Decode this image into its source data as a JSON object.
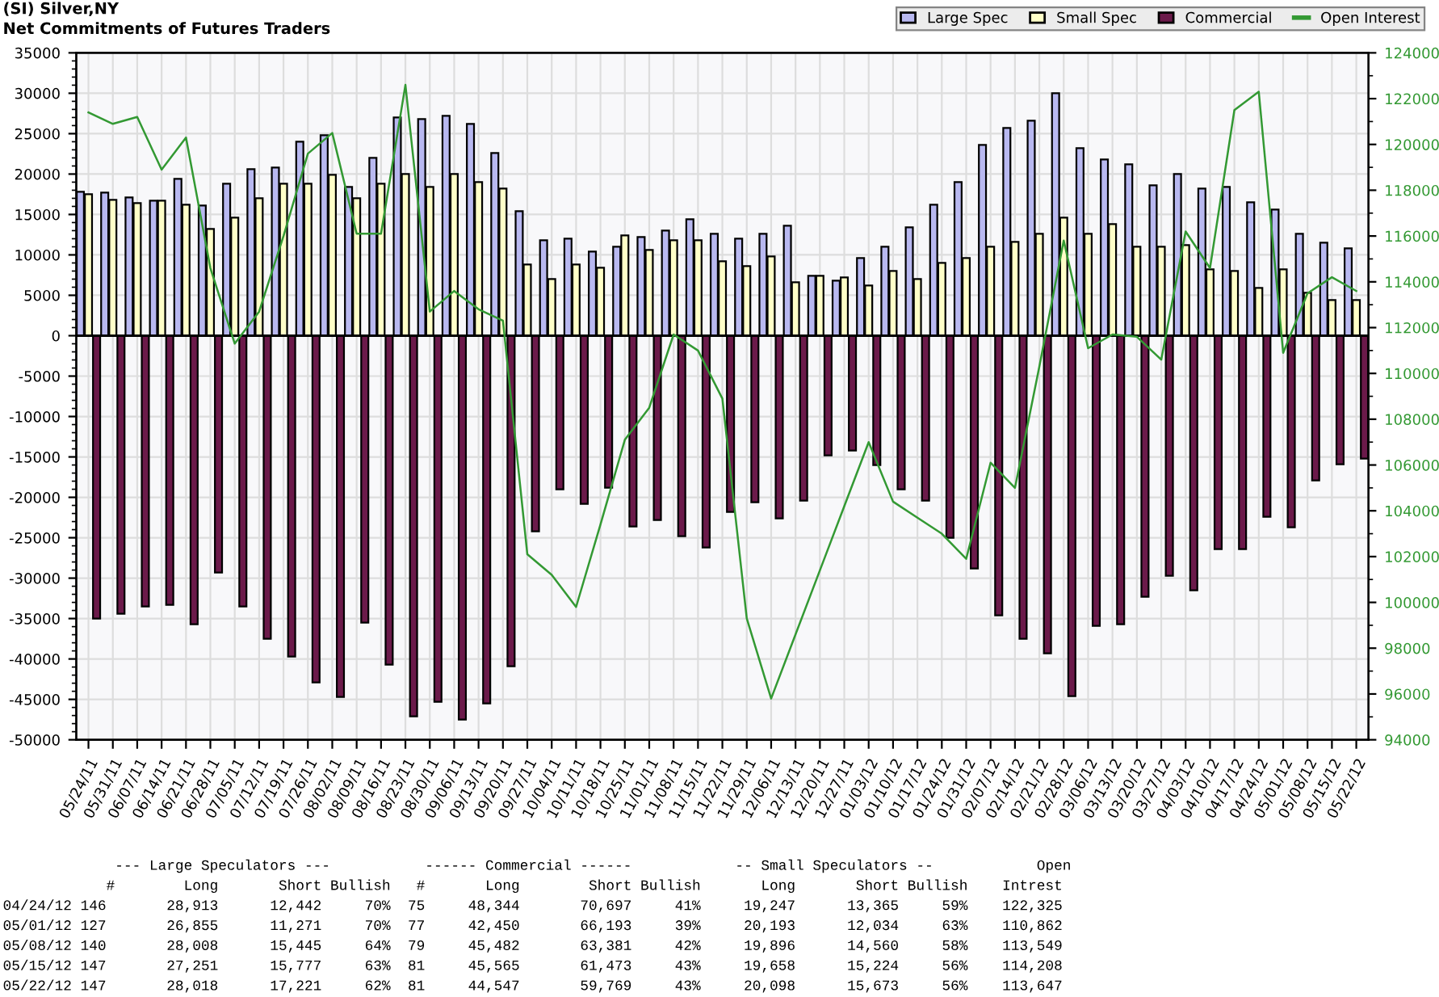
{
  "chart_data": {
    "type": "bar",
    "title": "(SI) Silver,NY",
    "subtitle": "Net Commitments of Futures Traders",
    "categories": [
      "05/24/11",
      "05/31/11",
      "06/07/11",
      "06/14/11",
      "06/21/11",
      "06/28/11",
      "07/05/11",
      "07/12/11",
      "07/19/11",
      "07/26/11",
      "08/02/11",
      "08/09/11",
      "08/16/11",
      "08/23/11",
      "08/30/11",
      "09/06/11",
      "09/13/11",
      "09/20/11",
      "09/27/11",
      "10/04/11",
      "10/11/11",
      "10/18/11",
      "10/25/11",
      "11/01/11",
      "11/08/11",
      "11/15/11",
      "11/22/11",
      "11/29/11",
      "12/06/11",
      "12/13/11",
      "12/20/11",
      "12/27/11",
      "01/03/12",
      "01/10/12",
      "01/17/12",
      "01/24/12",
      "01/31/12",
      "02/07/12",
      "02/14/12",
      "02/21/12",
      "02/28/12",
      "03/06/12",
      "03/13/12",
      "03/20/12",
      "03/27/12",
      "04/03/12",
      "04/10/12",
      "04/17/12",
      "04/24/12",
      "05/01/12",
      "05/08/12",
      "05/15/12",
      "05/22/12"
    ],
    "series": [
      {
        "name": "Large Spec",
        "color": "#b8b8f0",
        "values": [
          17800,
          17700,
          17100,
          16700,
          19400,
          16100,
          18800,
          20600,
          20800,
          24000,
          24800,
          18400,
          22000,
          27000,
          26800,
          27200,
          26200,
          22600,
          15400,
          11800,
          12000,
          10400,
          11000,
          12200,
          13000,
          14400,
          12600,
          12000,
          12600,
          13600,
          7400,
          6800,
          9600,
          11000,
          13400,
          16200,
          19000,
          23600,
          25700,
          26600,
          30000,
          23200,
          21800,
          21200,
          18600,
          20000,
          18200,
          18400,
          16500,
          15600,
          12600,
          11500,
          10800
        ]
      },
      {
        "name": "Small Spec",
        "color": "#ffffc8",
        "values": [
          17500,
          16800,
          16400,
          16700,
          16200,
          13200,
          14600,
          17000,
          18800,
          18800,
          19900,
          17000,
          18800,
          20000,
          18400,
          20000,
          19000,
          18200,
          8800,
          7000,
          8800,
          8400,
          12400,
          10600,
          11800,
          11800,
          9200,
          8600,
          9800,
          6600,
          7400,
          7200,
          6200,
          8000,
          7000,
          9000,
          9600,
          11000,
          11600,
          12600,
          14600,
          12600,
          13800,
          11000,
          11000,
          11200,
          8200,
          8000,
          5900,
          8200,
          5300,
          4400,
          4400
        ]
      },
      {
        "name": "Commercial",
        "color": "#6b1a4a",
        "values": [
          -35000,
          -34400,
          -33500,
          -33300,
          -35700,
          -29300,
          -33500,
          -37500,
          -39700,
          -42900,
          -44700,
          -35500,
          -40700,
          -47100,
          -45300,
          -47500,
          -45500,
          -40900,
          -24200,
          -19000,
          -20800,
          -18800,
          -23600,
          -22800,
          -24800,
          -26200,
          -21800,
          -20600,
          -22600,
          -20400,
          -14800,
          -14200,
          -16000,
          -19000,
          -20400,
          -25000,
          -28800,
          -34600,
          -37500,
          -39300,
          -44600,
          -35900,
          -35700,
          -32300,
          -29700,
          -31500,
          -26400,
          -26400,
          -22400,
          -23700,
          -17900,
          -15900,
          -15200
        ]
      },
      {
        "name": "Open Interest",
        "type": "line",
        "axis": "y2",
        "color": "#339933",
        "values": [
          121400,
          120900,
          121200,
          118900,
          120300,
          114600,
          111300,
          112700,
          116000,
          119600,
          120500,
          116100,
          116100,
          122600,
          112700,
          113600,
          112800,
          112300,
          102100,
          101200,
          99800,
          103400,
          107100,
          108500,
          111700,
          111000,
          108900,
          99300,
          95800,
          98600,
          101400,
          104200,
          107000,
          104400,
          103700,
          103000,
          101900,
          106100,
          105000,
          110300,
          115800,
          111100,
          111700,
          111600,
          110600,
          116200,
          114600,
          121500,
          122300,
          110900,
          113500,
          114200,
          113600
        ]
      }
    ],
    "ylim": [
      -50000,
      35000
    ],
    "yticks": [
      -50000,
      -45000,
      -40000,
      -35000,
      -30000,
      -25000,
      -20000,
      -15000,
      -10000,
      -5000,
      0,
      5000,
      10000,
      15000,
      20000,
      25000,
      30000,
      35000
    ],
    "y2lim": [
      94000,
      124000
    ],
    "y2ticks": [
      94000,
      96000,
      98000,
      100000,
      102000,
      104000,
      106000,
      108000,
      110000,
      112000,
      114000,
      116000,
      118000,
      120000,
      122000,
      124000
    ],
    "grid": true,
    "legend": "top right",
    "annotations": [
      "             --- Large Speculators ---           ------ Commercial ------            -- Small Speculators --            Open",
      "            #        Long       Short Bullish   #       Long        Short Bullish       Long       Short Bullish    Intrest",
      "04/24/12 146       28,913      12,442     70%  75     48,344       70,697     41%     19,247      13,365     59%    122,325",
      "05/01/12 127       26,855      11,271     70%  77     42,450       66,193     39%     20,193      12,034     63%    110,862",
      "05/08/12 140       28,008      15,445     64%  79     45,482       63,381     42%     19,896      14,560     58%    113,549",
      "05/15/12 147       27,251      15,777     63%  81     45,565       61,473     43%     19,658      15,224     56%    114,208",
      "05/22/12 147       28,018      17,221     62%  81     44,547       59,769     43%     20,098      15,673     56%    113,647"
    ]
  }
}
